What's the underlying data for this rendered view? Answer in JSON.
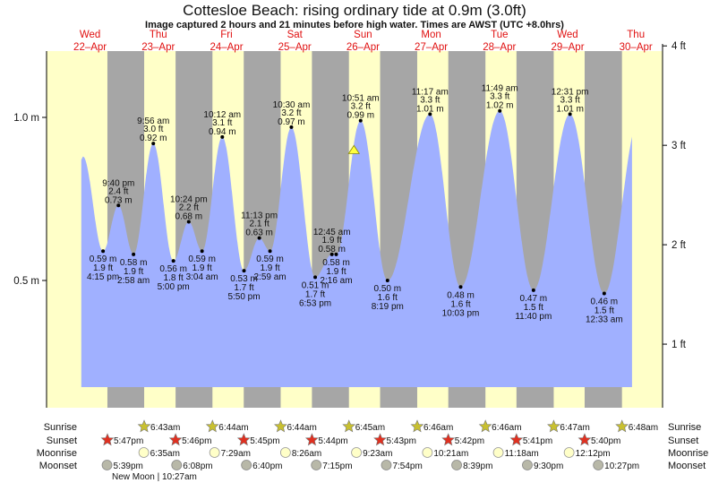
{
  "header": {
    "title": "Cottesloe Beach: rising  ordinary tide at 0.9m (3.0ft)",
    "subtitle": "Image captured 2 hours and 21 minutes before high water. Times are AWST (UTC +8.0hrs)"
  },
  "colors": {
    "day": "#ffffc8",
    "night": "#a6a6a6",
    "water": "#a0b0ff",
    "day_label": "#e01010",
    "sunrise": "#c8c030",
    "sunset": "#e03020",
    "moonrise": "#ffffc8",
    "moonset": "#b8b8a8",
    "marker": "#ffff40"
  },
  "chart_data": {
    "type": "area",
    "title": "Cottesloe Beach: rising  ordinary tide at 0.9m (3.0ft)",
    "days": [
      {
        "dow": "Wed",
        "date": "22–Apr"
      },
      {
        "dow": "Thu",
        "date": "23–Apr"
      },
      {
        "dow": "Fri",
        "date": "24–Apr"
      },
      {
        "dow": "Sat",
        "date": "25–Apr"
      },
      {
        "dow": "Sun",
        "date": "26–Apr"
      },
      {
        "dow": "Mon",
        "date": "27–Apr"
      },
      {
        "dow": "Tue",
        "date": "28–Apr"
      },
      {
        "dow": "Wed",
        "date": "29–Apr"
      },
      {
        "dow": "Thu",
        "date": "30–Apr"
      }
    ],
    "left_axis": {
      "unit": "m",
      "ticks": [
        {
          "v": 1.0,
          "label": "1.0 m"
        },
        {
          "v": 0.5,
          "label": "0.5 m"
        }
      ]
    },
    "right_axis": {
      "unit": "ft",
      "ticks": [
        {
          "v": 4,
          "label": "4 ft"
        },
        {
          "v": 3,
          "label": "3 ft"
        },
        {
          "v": 2,
          "label": "2 ft"
        },
        {
          "v": 1,
          "label": "1 ft"
        }
      ]
    },
    "ylim_m": [
      0.11,
      1.2
    ],
    "series_start": {
      "day": 0,
      "time": "8:36 am",
      "m": 0.87
    },
    "series_end": {
      "day": 8,
      "time": "10:20 am",
      "m": 0.76
    },
    "extremes": [
      {
        "day": 0,
        "time": "9:10 am",
        "m": 0.88,
        "hidden": true
      },
      {
        "day": 0,
        "time": "4:15 pm",
        "m": 0.59,
        "ft": "1.9 ft",
        "ml": "0.59 m",
        "type": "low"
      },
      {
        "day": 0,
        "time": "9:40 pm",
        "m": 0.73,
        "ft": "2.4 ft",
        "ml": "0.73 m",
        "type": "high"
      },
      {
        "day": 1,
        "time": "2:58 am",
        "m": 0.58,
        "ft": "1.9 ft",
        "ml": "0.58 m",
        "type": "low"
      },
      {
        "day": 1,
        "time": "9:56 am",
        "m": 0.92,
        "ft": "3.0 ft",
        "ml": "0.92 m",
        "type": "high"
      },
      {
        "day": 1,
        "time": "5:00 pm",
        "m": 0.56,
        "ft": "1.8 ft",
        "ml": "0.56 m",
        "type": "low"
      },
      {
        "day": 1,
        "time": "10:24 pm",
        "m": 0.68,
        "ft": "2.2 ft",
        "ml": "0.68 m",
        "type": "high"
      },
      {
        "day": 2,
        "time": "3:04 am",
        "m": 0.59,
        "ft": "1.9 ft",
        "ml": "0.59 m",
        "type": "low"
      },
      {
        "day": 2,
        "time": "10:12 am",
        "m": 0.94,
        "ft": "3.1 ft",
        "ml": "0.94 m",
        "type": "high"
      },
      {
        "day": 2,
        "time": "5:50 pm",
        "m": 0.53,
        "ft": "1.7 ft",
        "ml": "0.53 m",
        "type": "low"
      },
      {
        "day": 2,
        "time": "11:13 pm",
        "m": 0.63,
        "ft": "2.1 ft",
        "ml": "0.63 m",
        "type": "high"
      },
      {
        "day": 3,
        "time": "2:59 am",
        "m": 0.59,
        "ft": "1.9 ft",
        "ml": "0.59 m",
        "type": "low"
      },
      {
        "day": 3,
        "time": "10:30 am",
        "m": 0.97,
        "ft": "3.2 ft",
        "ml": "0.97 m",
        "type": "high"
      },
      {
        "day": 3,
        "time": "6:53 pm",
        "m": 0.51,
        "ft": "1.7 ft",
        "ml": "0.51 m",
        "type": "low"
      },
      {
        "day": 4,
        "time": "12:45 am",
        "m": 0.58,
        "ft": "1.9 ft",
        "ml": "0.58 m",
        "type": "high"
      },
      {
        "day": 4,
        "time": "2:16 am",
        "m": 0.58,
        "ft": "1.9 ft",
        "ml": "0.58 m",
        "type": "low"
      },
      {
        "day": 4,
        "time": "10:51 am",
        "m": 0.99,
        "ft": "3.2 ft",
        "ml": "0.99 m",
        "type": "high"
      },
      {
        "day": 4,
        "time": "8:19 pm",
        "m": 0.5,
        "ft": "1.6 ft",
        "ml": "0.50 m",
        "type": "low"
      },
      {
        "day": 5,
        "time": "11:17 am",
        "m": 1.01,
        "ft": "3.3 ft",
        "ml": "1.01 m",
        "type": "high"
      },
      {
        "day": 5,
        "time": "10:03 pm",
        "m": 0.48,
        "ft": "1.6 ft",
        "ml": "0.48 m",
        "type": "low"
      },
      {
        "day": 6,
        "time": "11:49 am",
        "m": 1.02,
        "ft": "3.3 ft",
        "ml": "1.02 m",
        "type": "high"
      },
      {
        "day": 6,
        "time": "11:40 pm",
        "m": 0.47,
        "ft": "1.5 ft",
        "ml": "0.47 m",
        "type": "low"
      },
      {
        "day": 7,
        "time": "12:31 pm",
        "m": 1.01,
        "ft": "3.3 ft",
        "ml": "1.01 m",
        "type": "high"
      },
      {
        "day": 8,
        "time": "12:33 am",
        "m": 0.46,
        "ft": "1.5 ft",
        "ml": "0.46 m",
        "type": "low"
      },
      {
        "day": 8,
        "time": "1:00 pm",
        "m": 1.0,
        "hidden": true
      }
    ],
    "current": {
      "day": 4,
      "time": "8:30 am",
      "m": 0.9
    }
  },
  "rows": {
    "sunrise": {
      "label": "Sunrise",
      "events": [
        {
          "day": 1,
          "time": "6:43am"
        },
        {
          "day": 2,
          "time": "6:44am"
        },
        {
          "day": 3,
          "time": "6:44am"
        },
        {
          "day": 4,
          "time": "6:45am"
        },
        {
          "day": 5,
          "time": "6:46am"
        },
        {
          "day": 6,
          "time": "6:46am"
        },
        {
          "day": 7,
          "time": "6:47am"
        },
        {
          "day": 8,
          "time": "6:48am"
        }
      ]
    },
    "sunset": {
      "label": "Sunset",
      "events": [
        {
          "day": 0,
          "time": "5:47pm"
        },
        {
          "day": 1,
          "time": "5:46pm"
        },
        {
          "day": 2,
          "time": "5:45pm"
        },
        {
          "day": 3,
          "time": "5:44pm"
        },
        {
          "day": 4,
          "time": "5:43pm"
        },
        {
          "day": 5,
          "time": "5:42pm"
        },
        {
          "day": 6,
          "time": "5:41pm"
        },
        {
          "day": 7,
          "time": "5:40pm"
        }
      ]
    },
    "moonrise": {
      "label": "Moonrise",
      "events": [
        {
          "day": 1,
          "time": "6:35am"
        },
        {
          "day": 2,
          "time": "7:29am"
        },
        {
          "day": 3,
          "time": "8:26am"
        },
        {
          "day": 4,
          "time": "9:23am"
        },
        {
          "day": 5,
          "time": "10:21am"
        },
        {
          "day": 6,
          "time": "11:18am"
        },
        {
          "day": 7,
          "time": "12:12pm"
        }
      ]
    },
    "moonset": {
      "label": "Moonset",
      "events": [
        {
          "day": 0,
          "time": "5:39pm"
        },
        {
          "day": 1,
          "time": "6:08pm"
        },
        {
          "day": 2,
          "time": "6:40pm"
        },
        {
          "day": 3,
          "time": "7:15pm"
        },
        {
          "day": 4,
          "time": "7:54pm"
        },
        {
          "day": 5,
          "time": "8:39pm"
        },
        {
          "day": 6,
          "time": "9:30pm"
        },
        {
          "day": 7,
          "time": "10:27pm"
        }
      ]
    }
  },
  "moon_phase": {
    "text": "New Moon | 10:27am",
    "day": 1,
    "time": "10:27am"
  }
}
